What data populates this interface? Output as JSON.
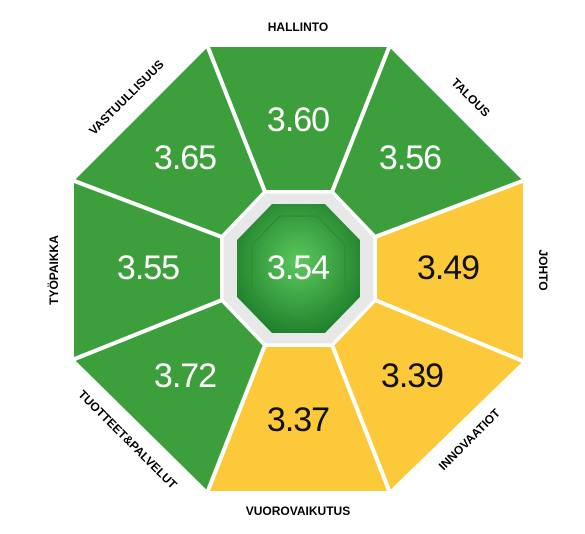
{
  "center": {
    "value": "3.54"
  },
  "segments": [
    {
      "label": "HALLINTO",
      "value": "3.60",
      "color": "#3c9f3c"
    },
    {
      "label": "TALOUS",
      "value": "3.56",
      "color": "#3c9f3c"
    },
    {
      "label": "JOHTO",
      "value": "3.49",
      "color": "#fcc93a"
    },
    {
      "label": "INNOVAATIOT",
      "value": "3.39",
      "color": "#fcc93a"
    },
    {
      "label": "VUOROVAIKUTUS",
      "value": "3.37",
      "color": "#fcc93a"
    },
    {
      "label": "TUOTTEET&PALVELUT",
      "value": "3.72",
      "color": "#3c9f3c"
    },
    {
      "label": "TYÖPAIKKA",
      "value": "3.55",
      "color": "#3c9f3c"
    },
    {
      "label": "VASTUULLISUUS",
      "value": "3.65",
      "color": "#3c9f3c"
    }
  ]
}
